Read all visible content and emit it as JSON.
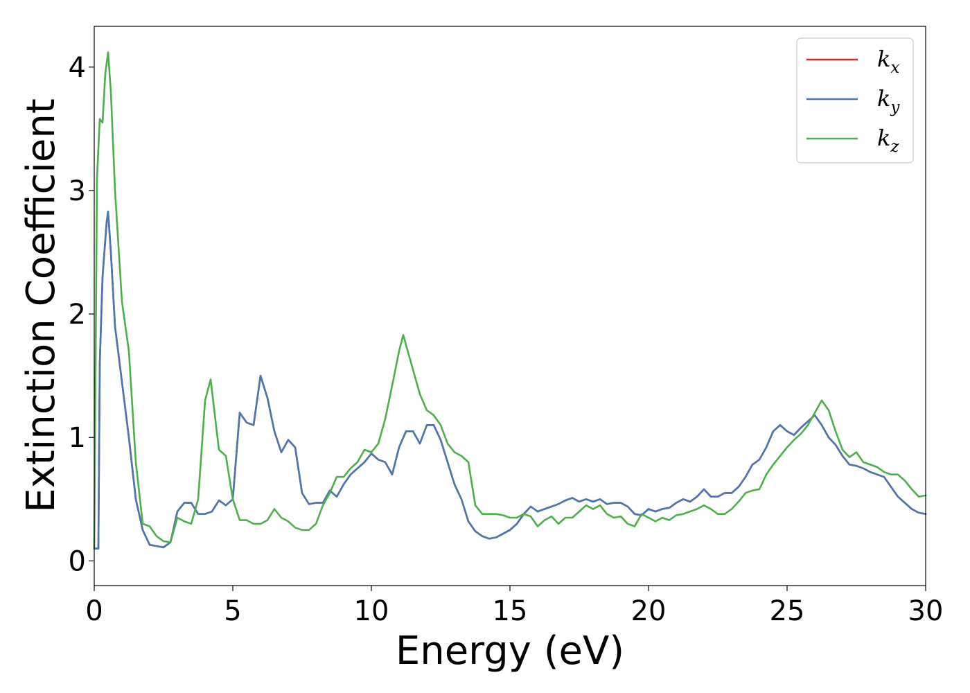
{
  "chart_data": {
    "type": "line",
    "xlabel": "Energy (eV)",
    "ylabel": "Extinction Coefficient",
    "xlim": [
      0,
      30
    ],
    "ylim": [
      -0.2,
      4.33
    ],
    "xticks": [
      0,
      5,
      10,
      15,
      20,
      25,
      30
    ],
    "xtick_labels": [
      "0",
      "5",
      "10",
      "15",
      "20",
      "25",
      "30"
    ],
    "yticks": [
      0,
      1,
      2,
      3,
      4
    ],
    "ytick_labels": [
      "0",
      "1",
      "2",
      "3",
      "4"
    ],
    "grid": false,
    "legend_position": "upper-right",
    "series": [
      {
        "name": "k_x",
        "label_base": "k",
        "label_sub": "x",
        "color": "#d62728",
        "x": [
          0.0,
          0.15,
          0.2,
          0.3,
          0.45,
          0.5,
          0.6,
          0.75,
          1.0,
          1.25,
          1.5,
          1.75,
          2.0,
          2.25,
          2.5,
          2.75,
          3.0,
          3.25,
          3.5,
          3.75,
          4.0,
          4.25,
          4.5,
          4.75,
          5.0,
          5.25,
          5.5,
          5.75,
          6.0,
          6.25,
          6.5,
          6.75,
          7.0,
          7.25,
          7.5,
          7.75,
          8.0,
          8.25,
          8.5,
          8.75,
          9.0,
          9.25,
          9.5,
          9.75,
          10.0,
          10.25,
          10.5,
          10.75,
          11.0,
          11.25,
          11.5,
          11.75,
          12.0,
          12.25,
          12.5,
          12.75,
          13.0,
          13.25,
          13.5,
          13.75,
          14.0,
          14.25,
          14.5,
          14.75,
          15.0,
          15.25,
          15.5,
          15.75,
          16.0,
          16.25,
          16.5,
          16.75,
          17.0,
          17.25,
          17.5,
          17.75,
          18.0,
          18.25,
          18.5,
          18.75,
          19.0,
          19.25,
          19.5,
          19.75,
          20.0,
          20.25,
          20.5,
          20.75,
          21.0,
          21.25,
          21.5,
          21.75,
          22.0,
          22.25,
          22.5,
          22.75,
          23.0,
          23.25,
          23.5,
          23.75,
          24.0,
          24.25,
          24.5,
          24.75,
          25.0,
          25.25,
          25.5,
          25.75,
          26.0,
          26.25,
          26.5,
          26.75,
          27.0,
          27.25,
          27.5,
          27.75,
          28.0,
          28.25,
          28.5,
          28.75,
          29.0,
          29.25,
          29.5,
          29.75,
          30.0
        ],
        "y": [
          0.1,
          0.1,
          1.6,
          2.3,
          2.75,
          2.83,
          2.5,
          1.9,
          1.45,
          1.0,
          0.5,
          0.25,
          0.13,
          0.12,
          0.11,
          0.15,
          0.4,
          0.47,
          0.47,
          0.38,
          0.38,
          0.4,
          0.49,
          0.45,
          0.5,
          1.2,
          1.12,
          1.1,
          1.5,
          1.32,
          1.05,
          0.88,
          0.98,
          0.92,
          0.55,
          0.46,
          0.47,
          0.47,
          0.57,
          0.52,
          0.62,
          0.7,
          0.75,
          0.8,
          0.87,
          0.82,
          0.8,
          0.7,
          0.92,
          1.05,
          1.05,
          0.95,
          1.1,
          1.1,
          0.98,
          0.8,
          0.62,
          0.5,
          0.32,
          0.24,
          0.2,
          0.18,
          0.19,
          0.22,
          0.25,
          0.3,
          0.38,
          0.44,
          0.4,
          0.42,
          0.44,
          0.46,
          0.49,
          0.51,
          0.48,
          0.5,
          0.48,
          0.5,
          0.46,
          0.47,
          0.47,
          0.44,
          0.38,
          0.37,
          0.42,
          0.4,
          0.42,
          0.43,
          0.47,
          0.5,
          0.48,
          0.52,
          0.58,
          0.52,
          0.52,
          0.55,
          0.55,
          0.6,
          0.68,
          0.78,
          0.82,
          0.92,
          1.05,
          1.1,
          1.05,
          1.02,
          1.08,
          1.13,
          1.18,
          1.1,
          1.0,
          0.94,
          0.85,
          0.78,
          0.77,
          0.75,
          0.72,
          0.7,
          0.68,
          0.6,
          0.52,
          0.47,
          0.42,
          0.39,
          0.38
        ]
      },
      {
        "name": "k_y",
        "label_base": "k",
        "label_sub": "y",
        "color": "#4a77b4",
        "x": [
          0.0,
          0.15,
          0.2,
          0.3,
          0.45,
          0.5,
          0.6,
          0.75,
          1.0,
          1.25,
          1.5,
          1.75,
          2.0,
          2.25,
          2.5,
          2.75,
          3.0,
          3.25,
          3.5,
          3.75,
          4.0,
          4.25,
          4.5,
          4.75,
          5.0,
          5.25,
          5.5,
          5.75,
          6.0,
          6.25,
          6.5,
          6.75,
          7.0,
          7.25,
          7.5,
          7.75,
          8.0,
          8.25,
          8.5,
          8.75,
          9.0,
          9.25,
          9.5,
          9.75,
          10.0,
          10.25,
          10.5,
          10.75,
          11.0,
          11.25,
          11.5,
          11.75,
          12.0,
          12.25,
          12.5,
          12.75,
          13.0,
          13.25,
          13.5,
          13.75,
          14.0,
          14.25,
          14.5,
          14.75,
          15.0,
          15.25,
          15.5,
          15.75,
          16.0,
          16.25,
          16.5,
          16.75,
          17.0,
          17.25,
          17.5,
          17.75,
          18.0,
          18.25,
          18.5,
          18.75,
          19.0,
          19.25,
          19.5,
          19.75,
          20.0,
          20.25,
          20.5,
          20.75,
          21.0,
          21.25,
          21.5,
          21.75,
          22.0,
          22.25,
          22.5,
          22.75,
          23.0,
          23.25,
          23.5,
          23.75,
          24.0,
          24.25,
          24.5,
          24.75,
          25.0,
          25.25,
          25.5,
          25.75,
          26.0,
          26.25,
          26.5,
          26.75,
          27.0,
          27.25,
          27.5,
          27.75,
          28.0,
          28.25,
          28.5,
          28.75,
          29.0,
          29.25,
          29.5,
          29.75,
          30.0
        ],
        "y": [
          0.1,
          0.1,
          1.6,
          2.3,
          2.75,
          2.83,
          2.5,
          1.9,
          1.45,
          1.0,
          0.5,
          0.25,
          0.13,
          0.12,
          0.11,
          0.15,
          0.4,
          0.47,
          0.47,
          0.38,
          0.38,
          0.4,
          0.49,
          0.45,
          0.5,
          1.2,
          1.12,
          1.1,
          1.5,
          1.32,
          1.05,
          0.88,
          0.98,
          0.92,
          0.55,
          0.46,
          0.47,
          0.47,
          0.57,
          0.52,
          0.62,
          0.7,
          0.75,
          0.8,
          0.87,
          0.82,
          0.8,
          0.7,
          0.92,
          1.05,
          1.05,
          0.95,
          1.1,
          1.1,
          0.98,
          0.8,
          0.62,
          0.5,
          0.32,
          0.24,
          0.2,
          0.18,
          0.19,
          0.22,
          0.25,
          0.3,
          0.38,
          0.44,
          0.4,
          0.42,
          0.44,
          0.46,
          0.49,
          0.51,
          0.48,
          0.5,
          0.48,
          0.5,
          0.46,
          0.47,
          0.47,
          0.44,
          0.38,
          0.37,
          0.42,
          0.4,
          0.42,
          0.43,
          0.47,
          0.5,
          0.48,
          0.52,
          0.58,
          0.52,
          0.52,
          0.55,
          0.55,
          0.6,
          0.68,
          0.78,
          0.82,
          0.92,
          1.05,
          1.1,
          1.05,
          1.02,
          1.08,
          1.13,
          1.18,
          1.1,
          1.0,
          0.94,
          0.85,
          0.78,
          0.77,
          0.75,
          0.72,
          0.7,
          0.68,
          0.6,
          0.52,
          0.47,
          0.42,
          0.39,
          0.38
        ]
      },
      {
        "name": "k_z",
        "label_base": "k",
        "label_sub": "z",
        "color": "#4daf4a",
        "x": [
          0.0,
          0.1,
          0.2,
          0.3,
          0.4,
          0.5,
          0.6,
          0.75,
          1.0,
          1.25,
          1.5,
          1.75,
          2.0,
          2.25,
          2.5,
          2.75,
          3.0,
          3.25,
          3.5,
          3.75,
          4.0,
          4.2,
          4.5,
          4.75,
          5.0,
          5.25,
          5.5,
          5.75,
          6.0,
          6.25,
          6.5,
          6.75,
          7.0,
          7.25,
          7.5,
          7.75,
          8.0,
          8.25,
          8.5,
          8.75,
          9.0,
          9.25,
          9.5,
          9.75,
          10.0,
          10.25,
          10.5,
          10.75,
          11.0,
          11.15,
          11.5,
          11.75,
          12.0,
          12.25,
          12.5,
          12.75,
          13.0,
          13.25,
          13.5,
          13.75,
          14.0,
          14.25,
          14.5,
          14.75,
          15.0,
          15.25,
          15.5,
          15.75,
          16.0,
          16.25,
          16.5,
          16.75,
          17.0,
          17.25,
          17.5,
          17.75,
          18.0,
          18.25,
          18.5,
          18.75,
          19.0,
          19.25,
          19.5,
          19.75,
          20.0,
          20.25,
          20.5,
          20.75,
          21.0,
          21.25,
          21.5,
          21.75,
          22.0,
          22.25,
          22.5,
          22.75,
          23.0,
          23.25,
          23.5,
          23.75,
          24.0,
          24.25,
          24.5,
          24.75,
          25.0,
          25.25,
          25.5,
          25.75,
          26.0,
          26.25,
          26.5,
          26.75,
          27.0,
          27.25,
          27.5,
          27.75,
          28.0,
          28.25,
          28.5,
          28.75,
          29.0,
          29.25,
          29.5,
          29.75,
          30.0
        ],
        "y": [
          0.1,
          3.1,
          3.58,
          3.55,
          3.95,
          4.12,
          3.8,
          3.0,
          2.1,
          1.7,
          0.8,
          0.3,
          0.28,
          0.2,
          0.16,
          0.15,
          0.35,
          0.32,
          0.3,
          0.5,
          1.3,
          1.47,
          0.9,
          0.85,
          0.5,
          0.33,
          0.33,
          0.3,
          0.3,
          0.33,
          0.42,
          0.35,
          0.32,
          0.27,
          0.25,
          0.25,
          0.3,
          0.45,
          0.55,
          0.68,
          0.68,
          0.75,
          0.8,
          0.9,
          0.88,
          0.95,
          1.15,
          1.42,
          1.7,
          1.83,
          1.55,
          1.35,
          1.22,
          1.18,
          1.1,
          0.95,
          0.88,
          0.85,
          0.8,
          0.45,
          0.38,
          0.38,
          0.38,
          0.37,
          0.35,
          0.35,
          0.38,
          0.36,
          0.28,
          0.33,
          0.36,
          0.3,
          0.35,
          0.35,
          0.4,
          0.45,
          0.42,
          0.45,
          0.38,
          0.35,
          0.36,
          0.3,
          0.28,
          0.38,
          0.35,
          0.32,
          0.35,
          0.33,
          0.37,
          0.38,
          0.4,
          0.42,
          0.45,
          0.42,
          0.38,
          0.38,
          0.42,
          0.48,
          0.55,
          0.57,
          0.58,
          0.7,
          0.78,
          0.85,
          0.92,
          0.98,
          1.03,
          1.1,
          1.2,
          1.3,
          1.22,
          1.05,
          0.9,
          0.84,
          0.88,
          0.8,
          0.78,
          0.76,
          0.72,
          0.7,
          0.7,
          0.65,
          0.58,
          0.52,
          0.53
        ]
      }
    ]
  }
}
